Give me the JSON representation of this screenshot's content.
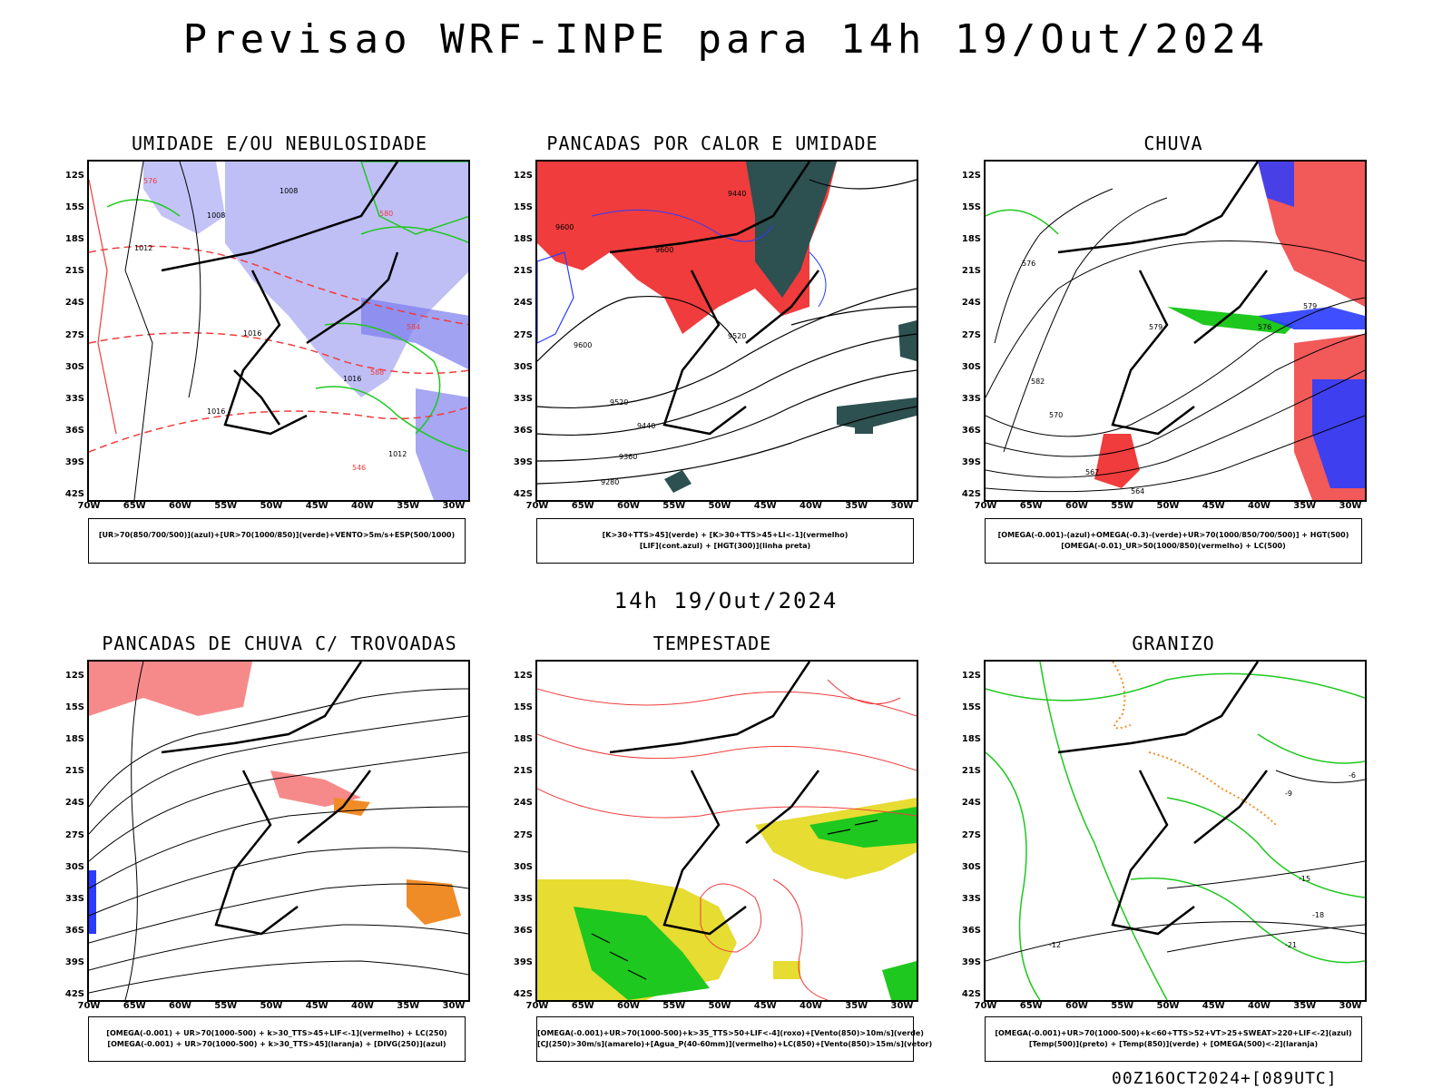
{
  "header": {
    "title": "Previsao WRF-INPE  para 14h 19/Out/2024",
    "mid_title": "14h 19/Out/2024",
    "footer": "00Z16OCT2024+[089UTC]"
  },
  "axes": {
    "lat_labels": [
      "12S",
      "15S",
      "18S",
      "21S",
      "24S",
      "27S",
      "30S",
      "33S",
      "36S",
      "39S",
      "42S"
    ],
    "lon_labels": [
      "70W",
      "65W",
      "60W",
      "55W",
      "50W",
      "45W",
      "40W",
      "35W",
      "30W"
    ]
  },
  "panels": [
    {
      "title": "UMIDADE E/OU NEBULOSIDADE",
      "legend": [
        "[UR>70(850/700/500)](azul)+[UR>70(1000/850)](verde)+VENTO>5m/s+ESP(500/1000)"
      ]
    },
    {
      "title": "PANCADAS POR CALOR E UMIDADE",
      "legend": [
        "[K>30+TTS>45](verde) + [K>30+TTS>45+LI<-1](vermelho)",
        "[LIF](cont.azul) + [HGT(300)](linha preta)"
      ]
    },
    {
      "title": "CHUVA",
      "legend": [
        "[OMEGA(-0.001)-(azul)+OMEGA(-0.3)-(verde)+UR>70(1000/850/700/500)] + HGT(500)",
        "[OMEGA(-0.01)_UR>50(1000/850)(vermelho) + LC(500)"
      ]
    },
    {
      "title": "PANCADAS DE CHUVA C/ TROVOADAS",
      "legend": [
        "[OMEGA(-0.001) + UR>70(1000-500) + k>30_TTS>45+LIF<-1](vermelho) + LC(250)",
        "[OMEGA(-0.001) + UR>70(1000-500) + k>30_TTS>45](laranja) + [DIVG(250)](azul)"
      ]
    },
    {
      "title": "TEMPESTADE",
      "legend": [
        "[OMEGA(-0.001)+UR>70(1000-500)+k>35_TTS>50+LIF<-4](roxo)+[Vento(850)>10m/s](verde)",
        "[CJ(250)>30m/s](amarelo)+[Agua_P(40-60mm)](vermelho)+LC(850)+[Vento(850)>15m/s](vetor)"
      ]
    },
    {
      "title": "GRANIZO",
      "legend": [
        "[OMEGA(-0.001)+UR>70(1000-500)+k<60+TTS>52+VT>25+SWEAT>220+LIF<-2](azul)",
        "[Temp(500)](preto) + [Temp(850)](verde) + [OMEGA(500)<-2](laranja)"
      ]
    }
  ],
  "contour_labels": {
    "p1": [
      "1008",
      "1008",
      "1012",
      "1016",
      "1016",
      "1016",
      "576",
      "580",
      "584",
      "588",
      "546",
      "1012"
    ],
    "p2": [
      "9600",
      "9600",
      "9520",
      "9440",
      "9360",
      "9280",
      "9520",
      "9600",
      "9440"
    ],
    "p3": [
      "579",
      "582",
      "576",
      "570",
      "567",
      "564",
      "579",
      "576"
    ],
    "p6": [
      "-15",
      "-12",
      "-18",
      "-21",
      "-9",
      "-6"
    ]
  },
  "colors": {
    "red": "#f03c3c",
    "green": "#1ec81e",
    "blue": "#2a3cff",
    "lavender": "#b4b4f5",
    "darkteal": "#2d5050",
    "yellow": "#e6dc32",
    "orange": "#f08c28"
  }
}
